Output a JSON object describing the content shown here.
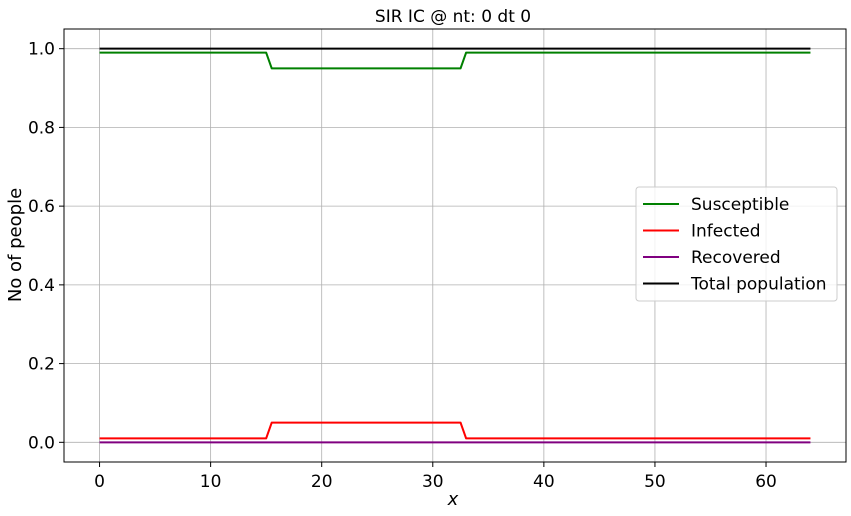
{
  "chart_data": {
    "type": "line",
    "title": "SIR IC @ nt: 0 dt 0",
    "xlabel": "x",
    "ylabel": "No of people",
    "xlim": [
      -3.2,
      67.2
    ],
    "ylim": [
      -0.05,
      1.05
    ],
    "xticks": [
      0,
      10,
      20,
      30,
      40,
      50,
      60
    ],
    "yticks": [
      0.0,
      0.2,
      0.4,
      0.6,
      0.8,
      1.0
    ],
    "ytick_labels": [
      "0.0",
      "0.2",
      "0.4",
      "0.6",
      "0.8",
      "1.0"
    ],
    "grid": true,
    "legend_position": "center-right",
    "series": [
      {
        "name": "Susceptible",
        "color": "#008000",
        "x": [
          0,
          15,
          15.5,
          32.5,
          33,
          64
        ],
        "y": [
          0.99,
          0.99,
          0.95,
          0.95,
          0.99,
          0.99
        ]
      },
      {
        "name": "Infected",
        "color": "#ff0000",
        "x": [
          0,
          15,
          15.5,
          32.5,
          33,
          64
        ],
        "y": [
          0.01,
          0.01,
          0.05,
          0.05,
          0.01,
          0.01
        ]
      },
      {
        "name": "Recovered",
        "color": "#800080",
        "x": [
          0,
          64
        ],
        "y": [
          0.0,
          0.0
        ]
      },
      {
        "name": "Total population",
        "color": "#000000",
        "x": [
          0,
          64
        ],
        "y": [
          1.0,
          1.0
        ]
      }
    ]
  }
}
